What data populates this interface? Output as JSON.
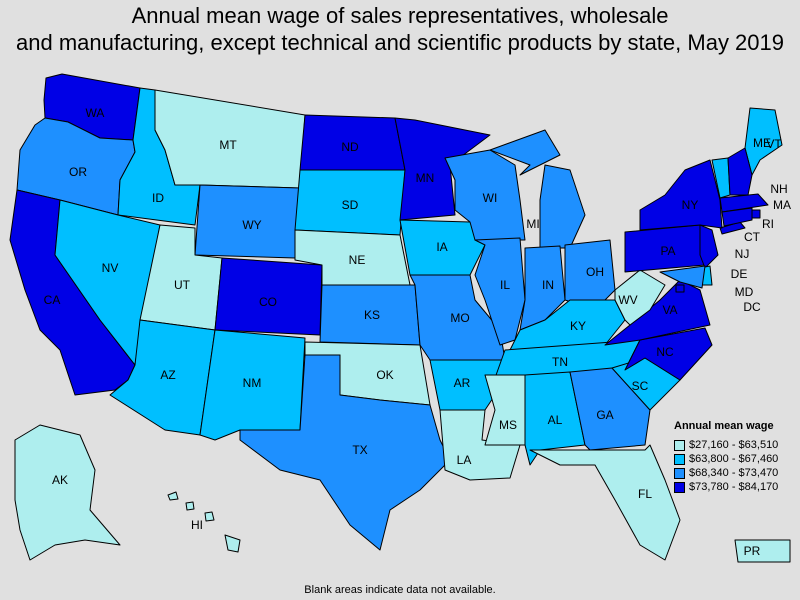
{
  "title": {
    "line1": "Annual mean wage of sales representatives, wholesale",
    "line2": "and manufacturing, except technical and scientific products by state, May 2019"
  },
  "legend": {
    "title": "Annual mean wage",
    "ranges": [
      {
        "label": "$27,160 - $63,510",
        "color": "#aeeeee"
      },
      {
        "label": "$63,800 - $67,460",
        "color": "#00bfff"
      },
      {
        "label": "$68,340 - $73,470",
        "color": "#1e90ff"
      },
      {
        "label": "$73,780 - $84,170",
        "color": "#0000e6"
      }
    ]
  },
  "states": {
    "WA": 3,
    "OR": 2,
    "CA": 3,
    "ID": 1,
    "NV": 1,
    "MT": 0,
    "WY": 2,
    "UT": 0,
    "AZ": 1,
    "CO": 3,
    "NM": 1,
    "ND": 3,
    "SD": 1,
    "NE": 0,
    "KS": 2,
    "OK": 0,
    "TX": 2,
    "MN": 3,
    "IA": 1,
    "MO": 2,
    "AR": 1,
    "LA": 0,
    "WI": 2,
    "IL": 2,
    "MI": 2,
    "IN": 2,
    "OH": 2,
    "KY": 1,
    "TN": 1,
    "MS": 0,
    "AL": 1,
    "GA": 2,
    "FL": 0,
    "SC": 1,
    "NC": 3,
    "VA": 3,
    "WV": 0,
    "PA": 3,
    "NY": 3,
    "ME": 1,
    "VT": 1,
    "NH": 3,
    "MA": 3,
    "RI": 3,
    "CT": 3,
    "NJ": 3,
    "DE": 1,
    "MD": 2,
    "DC": 3,
    "AK": 0,
    "HI": 0,
    "PR": 0
  },
  "footnote": "Blank areas indicate data not available."
}
